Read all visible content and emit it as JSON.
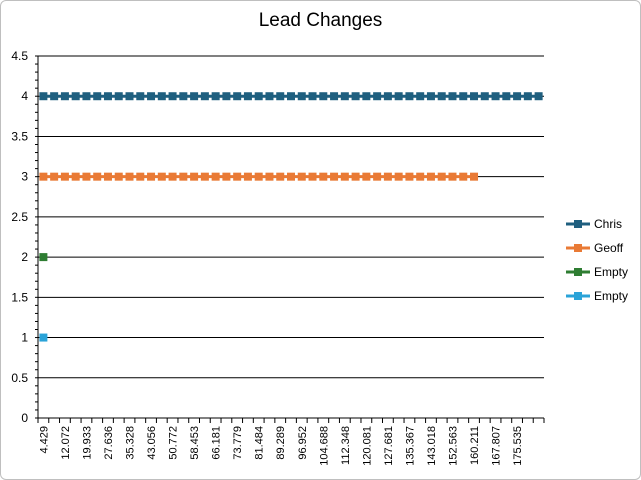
{
  "chart_data": {
    "type": "line",
    "title": "Lead Changes",
    "xlabel": "",
    "ylabel": "",
    "ylim": [
      0,
      4.5
    ],
    "y_ticks": [
      "0",
      "0.5",
      "1",
      "1.5",
      "2",
      "2.5",
      "3",
      "3.5",
      "4",
      "4.5"
    ],
    "x_tick_labels": [
      "4.429",
      "12.072",
      "19.933",
      "27.636",
      "35.328",
      "43.056",
      "50.772",
      "58.453",
      "66.181",
      "73.779",
      "81.484",
      "89.289",
      "96.952",
      "104.688",
      "112.348",
      "120.081",
      "127.681",
      "135.367",
      "143.018",
      "152.563",
      "160.211",
      "167.807",
      "175.535"
    ],
    "category_count": 47,
    "grid": true,
    "legend_position": "right",
    "series": [
      {
        "name": "Chris",
        "color": "#1f5f7f",
        "start_index": 0,
        "point_count": 47,
        "value": 4
      },
      {
        "name": "Geoff",
        "color": "#e97a35",
        "start_index": 0,
        "point_count": 41,
        "value": 3
      },
      {
        "name": "Empty",
        "color": "#2e7d32",
        "start_index": 0,
        "point_count": 1,
        "value": 2
      },
      {
        "name": "Empty",
        "color": "#2aa3d8",
        "start_index": 0,
        "point_count": 1,
        "value": 1
      }
    ]
  }
}
